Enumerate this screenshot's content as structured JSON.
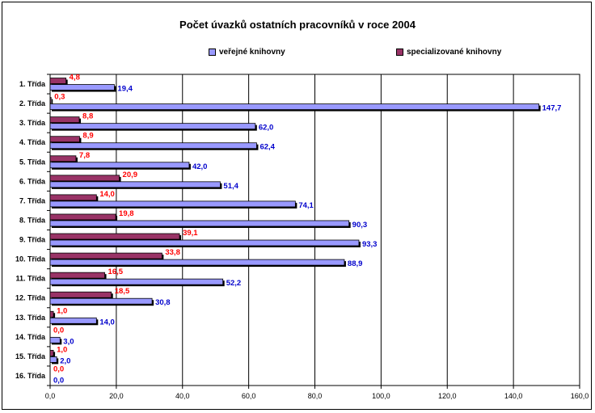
{
  "chart_data": {
    "type": "bar",
    "orientation": "horizontal",
    "title": "Počet úvazků ostatních pracovníků v roce 2004",
    "categories": [
      "1. Třída",
      "2. Třída",
      "3. Třída",
      "4. Třída",
      "5. Třída",
      "6. Třída",
      "7. Třída",
      "8. Třída",
      "9. Třída",
      "10. Třída",
      "11. Třída",
      "12. Třída",
      "13. Třída",
      "14. Třída",
      "15. Třída",
      "16. Třída"
    ],
    "series": [
      {
        "name": "veřejné knihovny",
        "color": "#9999ff",
        "label_color": "#0000cc",
        "values": [
          19.4,
          147.7,
          62.0,
          62.4,
          42.0,
          51.4,
          74.1,
          90.3,
          93.3,
          88.9,
          52.2,
          30.8,
          14.0,
          3.0,
          2.0,
          0.0
        ],
        "labels": [
          "19,4",
          "147,7",
          "62,0",
          "62,4",
          "42,0",
          "51,4",
          "74,1",
          "90,3",
          "93,3",
          "88,9",
          "52,2",
          "30,8",
          "14,0",
          "3,0",
          "2,0",
          "0,0"
        ]
      },
      {
        "name": "specializované knihovny",
        "color": "#993366",
        "label_color": "#ff0000",
        "values": [
          4.8,
          0.3,
          8.8,
          8.9,
          7.8,
          20.9,
          14.0,
          19.8,
          39.1,
          33.8,
          16.5,
          18.5,
          1.0,
          0.0,
          1.0,
          0.0
        ],
        "labels": [
          "4,8",
          "0,3",
          "8,8",
          "8,9",
          "7,8",
          "20,9",
          "14,0",
          "19,8",
          "39,1",
          "33,8",
          "16,5",
          "18,5",
          "1,0",
          "0,0",
          "1,0",
          "0,0"
        ]
      }
    ],
    "x_ticks": [
      "0,0",
      "20,0",
      "40,0",
      "60,0",
      "80,0",
      "100,0",
      "120,0",
      "140,0",
      "160,0"
    ],
    "xlim": [
      0,
      160
    ],
    "grid": "vertical",
    "legend_position": "top"
  }
}
